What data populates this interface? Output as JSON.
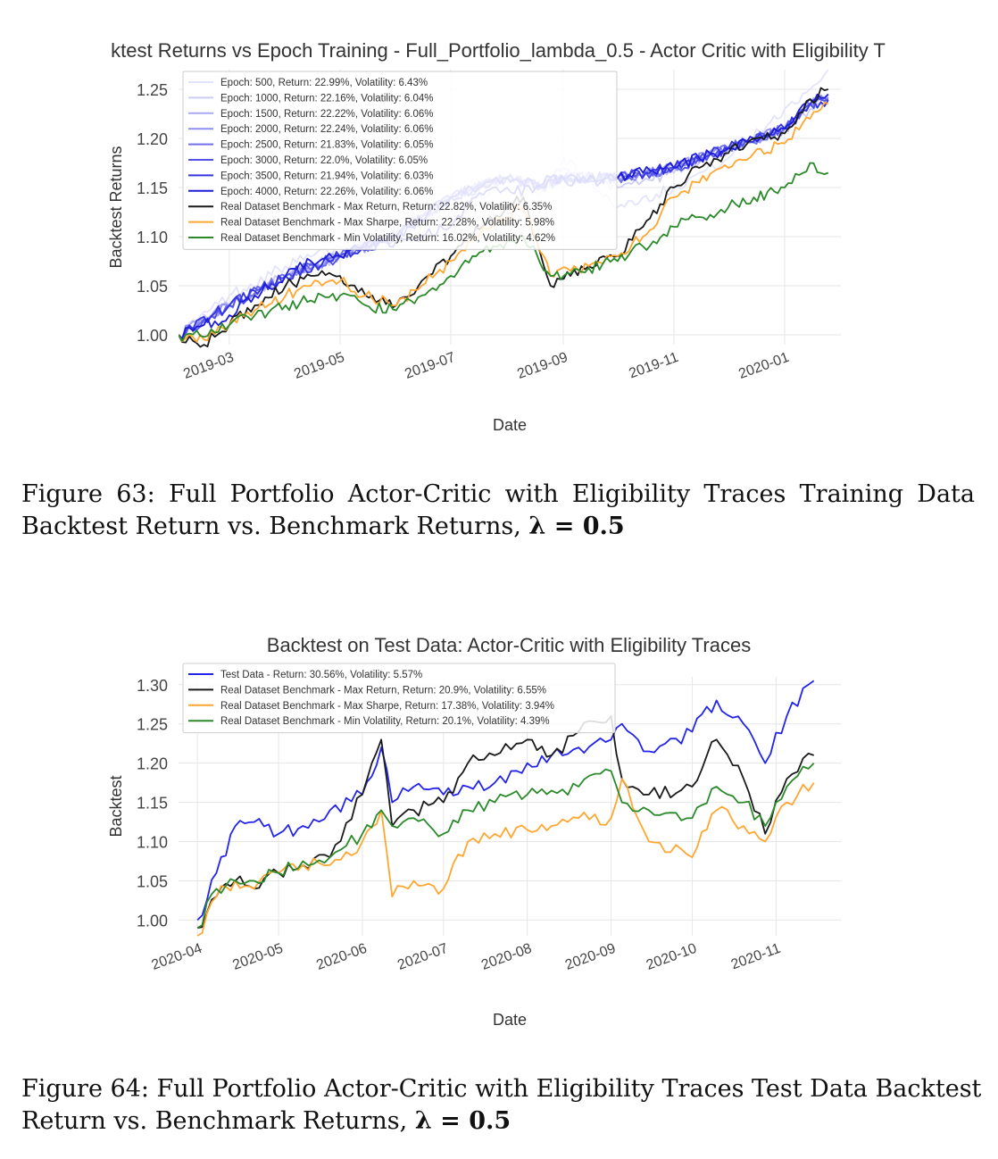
{
  "figures": [
    {
      "caption": {
        "line1": "Figure 63:  Full Portfolio Actor-Critic with Eligibility Traces Training Data",
        "line2_pre": "Backtest Return vs. Benchmark Returns, ",
        "line2_math": "λ = 0.5"
      }
    },
    {
      "caption": {
        "line1": "Figure 64: Full Portfolio Actor-Critic with Eligibility Traces Test Data Backtest",
        "line2_pre": "Return vs. Benchmark Returns, ",
        "line2_math": "λ = 0.5"
      }
    }
  ],
  "chart_data": [
    {
      "type": "line",
      "title": "ktest Returns vs Epoch Training - Full_Portfolio_lambda_0.5 - Actor Critic with Eligibility T",
      "xlabel": "Date",
      "ylabel": "Backtest Returns",
      "x_type": "date",
      "xlim": [
        "2019-02-01",
        "2020-02-01"
      ],
      "ylim": [
        0.99,
        1.27
      ],
      "yticks": [
        1.0,
        1.05,
        1.1,
        1.15,
        1.2,
        1.25
      ],
      "ytick_labels": [
        "1.00",
        "1.05",
        "1.10",
        "1.15",
        "1.20",
        "1.25"
      ],
      "xticks": [
        "2019-03-01",
        "2019-05-01",
        "2019-07-01",
        "2019-09-01",
        "2019-11-01",
        "2020-01-01"
      ],
      "xtick_labels": [
        "2019-03",
        "2019-05",
        "2019-07",
        "2019-09",
        "2019-11",
        "2020-01"
      ],
      "grid": true,
      "legend_position": "top-left",
      "series": [
        {
          "name": "Epoch: 500, Return: 22.99%, Volatility: 6.43%",
          "color": "#e3e3fb",
          "x": [
            "2019-02-01",
            "2019-03-01",
            "2019-04-01",
            "2019-05-01",
            "2019-06-01",
            "2019-07-01",
            "2019-08-01",
            "2019-08-20",
            "2019-09-01",
            "2019-10-01",
            "2019-11-01",
            "2019-12-01",
            "2020-01-01",
            "2020-01-15",
            "2020-01-25"
          ],
          "y": [
            1.0,
            1.04,
            1.07,
            1.09,
            1.11,
            1.12,
            1.16,
            1.145,
            1.18,
            1.13,
            1.15,
            1.18,
            1.23,
            1.25,
            1.27
          ]
        },
        {
          "name": "Epoch: 1000, Return: 22.16%, Volatility: 6.04%",
          "color": "#ccccf7",
          "x": [
            "2019-02-01",
            "2019-03-01",
            "2019-04-01",
            "2019-05-01",
            "2019-06-01",
            "2019-07-01",
            "2019-08-01",
            "2019-08-20",
            "2019-09-01",
            "2019-10-01",
            "2019-11-01",
            "2019-12-01",
            "2020-01-01",
            "2020-01-15",
            "2020-01-25"
          ],
          "y": [
            1.0,
            1.03,
            1.06,
            1.08,
            1.105,
            1.14,
            1.16,
            1.15,
            1.17,
            1.15,
            1.165,
            1.19,
            1.21,
            1.23,
            1.245
          ]
        },
        {
          "name": "Epoch: 1500, Return: 22.22%, Volatility: 6.06%",
          "color": "#a9a9f2",
          "x": [
            "2019-02-01",
            "2019-03-01",
            "2019-04-01",
            "2019-05-01",
            "2019-06-01",
            "2019-07-01",
            "2019-08-01",
            "2019-08-20",
            "2019-09-01",
            "2019-10-01",
            "2019-11-01",
            "2019-12-01",
            "2020-01-01",
            "2020-01-15",
            "2020-01-25"
          ],
          "y": [
            1.0,
            1.03,
            1.06,
            1.08,
            1.1,
            1.14,
            1.16,
            1.15,
            1.16,
            1.16,
            1.17,
            1.19,
            1.21,
            1.235,
            1.24
          ]
        },
        {
          "name": "Epoch: 2000, Return: 22.24%, Volatility: 6.06%",
          "color": "#8f8fef",
          "x": [
            "2019-02-01",
            "2019-03-01",
            "2019-04-01",
            "2019-05-01",
            "2019-06-01",
            "2019-07-01",
            "2019-08-01",
            "2019-08-20",
            "2019-09-01",
            "2019-10-01",
            "2019-11-01",
            "2019-12-01",
            "2020-01-01",
            "2020-01-15",
            "2020-01-25"
          ],
          "y": [
            1.0,
            1.03,
            1.06,
            1.08,
            1.1,
            1.14,
            1.16,
            1.15,
            1.16,
            1.16,
            1.17,
            1.19,
            1.21,
            1.235,
            1.242
          ]
        },
        {
          "name": "Epoch: 2500, Return: 21.83%, Volatility: 6.05%",
          "color": "#6f6feb",
          "x": [
            "2019-02-01",
            "2019-03-01",
            "2019-04-01",
            "2019-05-01",
            "2019-06-01",
            "2019-07-01",
            "2019-08-01",
            "2019-08-20",
            "2019-09-01",
            "2019-10-01",
            "2019-11-01",
            "2019-12-01",
            "2020-01-01",
            "2020-01-15",
            "2020-01-25"
          ],
          "y": [
            1.0,
            1.03,
            1.06,
            1.08,
            1.1,
            1.14,
            1.16,
            1.15,
            1.16,
            1.16,
            1.17,
            1.19,
            1.21,
            1.235,
            1.238
          ]
        },
        {
          "name": "Epoch: 3000, Return: 22.0%, Volatility: 6.05%",
          "color": "#5252e6",
          "x": [
            "2019-02-01",
            "2019-03-01",
            "2019-04-01",
            "2019-05-01",
            "2019-06-01",
            "2019-07-01",
            "2019-08-01",
            "2019-08-20",
            "2019-09-01",
            "2019-10-01",
            "2019-11-01",
            "2019-12-01",
            "2020-01-01",
            "2020-01-15",
            "2020-01-25"
          ],
          "y": [
            1.0,
            1.03,
            1.06,
            1.08,
            1.1,
            1.14,
            1.16,
            1.15,
            1.16,
            1.16,
            1.17,
            1.19,
            1.21,
            1.235,
            1.24
          ]
        },
        {
          "name": "Epoch: 3500, Return: 21.94%, Volatility: 6.03%",
          "color": "#3434e0",
          "x": [
            "2019-02-01",
            "2019-03-01",
            "2019-04-01",
            "2019-05-01",
            "2019-06-01",
            "2019-07-01",
            "2019-08-01",
            "2019-08-20",
            "2019-09-01",
            "2019-10-01",
            "2019-11-01",
            "2019-12-01",
            "2020-01-01",
            "2020-01-15",
            "2020-01-25"
          ],
          "y": [
            1.0,
            1.03,
            1.06,
            1.08,
            1.1,
            1.14,
            1.16,
            1.15,
            1.16,
            1.16,
            1.17,
            1.19,
            1.21,
            1.235,
            1.239
          ]
        },
        {
          "name": "Epoch: 4000, Return: 22.26%, Volatility: 6.06%",
          "color": "#1c1cd9",
          "x": [
            "2019-02-01",
            "2019-02-15",
            "2019-03-01",
            "2019-03-15",
            "2019-04-01",
            "2019-04-15",
            "2019-05-01",
            "2019-05-15",
            "2019-06-01",
            "2019-06-15",
            "2019-07-01",
            "2019-07-15",
            "2019-08-01",
            "2019-08-15",
            "2019-08-25",
            "2019-09-10",
            "2019-10-01",
            "2019-10-15",
            "2019-11-01",
            "2019-11-15",
            "2019-12-01",
            "2019-12-15",
            "2020-01-01",
            "2020-01-15",
            "2020-01-25"
          ],
          "y": [
            1.0,
            1.01,
            1.02,
            1.04,
            1.06,
            1.075,
            1.08,
            1.09,
            1.095,
            1.1,
            1.11,
            1.14,
            1.15,
            1.145,
            1.16,
            1.155,
            1.16,
            1.165,
            1.17,
            1.18,
            1.19,
            1.2,
            1.21,
            1.24,
            1.245
          ]
        },
        {
          "name": "Real Dataset Benchmark - Max Return, Return: 22.82%, Volatility: 6.35%",
          "color": "#1a1a1a",
          "x": [
            "2019-02-01",
            "2019-02-15",
            "2019-03-01",
            "2019-03-15",
            "2019-04-01",
            "2019-04-15",
            "2019-05-01",
            "2019-05-15",
            "2019-06-01",
            "2019-06-15",
            "2019-07-01",
            "2019-07-15",
            "2019-08-01",
            "2019-08-10",
            "2019-08-25",
            "2019-09-05",
            "2019-09-15",
            "2019-10-01",
            "2019-10-15",
            "2019-11-01",
            "2019-11-15",
            "2019-12-01",
            "2019-12-15",
            "2020-01-01",
            "2020-01-15",
            "2020-01-25"
          ],
          "y": [
            1.0,
            0.99,
            1.01,
            1.03,
            1.05,
            1.06,
            1.06,
            1.04,
            1.03,
            1.055,
            1.08,
            1.11,
            1.13,
            1.14,
            1.05,
            1.06,
            1.07,
            1.08,
            1.11,
            1.15,
            1.17,
            1.185,
            1.2,
            1.205,
            1.24,
            1.25
          ]
        },
        {
          "name": "Real Dataset Benchmark - Max Sharpe, Return: 22.28%, Volatility: 5.98%",
          "color": "#ffa630",
          "x": [
            "2019-02-01",
            "2019-02-15",
            "2019-03-01",
            "2019-03-15",
            "2019-04-01",
            "2019-04-15",
            "2019-05-01",
            "2019-05-15",
            "2019-06-01",
            "2019-06-15",
            "2019-07-01",
            "2019-07-15",
            "2019-08-01",
            "2019-08-10",
            "2019-08-25",
            "2019-09-05",
            "2019-09-15",
            "2019-10-01",
            "2019-10-15",
            "2019-11-01",
            "2019-11-15",
            "2019-12-01",
            "2019-12-15",
            "2020-01-01",
            "2020-01-15",
            "2020-01-25"
          ],
          "y": [
            1.0,
            0.995,
            1.01,
            1.025,
            1.04,
            1.05,
            1.055,
            1.04,
            1.03,
            1.05,
            1.075,
            1.1,
            1.12,
            1.13,
            1.06,
            1.065,
            1.07,
            1.08,
            1.1,
            1.14,
            1.155,
            1.17,
            1.185,
            1.195,
            1.22,
            1.235
          ]
        },
        {
          "name": "Real Dataset Benchmark - Min Volatility, Return: 16.02%, Volatility: 4.62%",
          "color": "#2a8a2a",
          "x": [
            "2019-02-01",
            "2019-02-15",
            "2019-03-01",
            "2019-03-15",
            "2019-04-01",
            "2019-04-15",
            "2019-05-01",
            "2019-05-15",
            "2019-06-01",
            "2019-06-15",
            "2019-07-01",
            "2019-07-15",
            "2019-08-01",
            "2019-08-10",
            "2019-08-25",
            "2019-09-05",
            "2019-09-15",
            "2019-10-01",
            "2019-10-15",
            "2019-11-01",
            "2019-11-15",
            "2019-12-01",
            "2019-12-15",
            "2020-01-01",
            "2020-01-15",
            "2020-01-25"
          ],
          "y": [
            1.0,
            0.998,
            1.01,
            1.02,
            1.03,
            1.035,
            1.04,
            1.03,
            1.025,
            1.04,
            1.06,
            1.08,
            1.095,
            1.1,
            1.06,
            1.062,
            1.068,
            1.075,
            1.09,
            1.11,
            1.12,
            1.13,
            1.14,
            1.15,
            1.175,
            1.165
          ]
        }
      ]
    },
    {
      "type": "line",
      "title": "Backtest on Test Data: Actor-Critic with Eligibility Traces",
      "xlabel": "Date",
      "ylabel": "Backtest",
      "x_type": "date",
      "xlim": [
        "2020-03-25",
        "2020-11-25"
      ],
      "ylim": [
        0.98,
        1.31
      ],
      "yticks": [
        1.0,
        1.05,
        1.1,
        1.15,
        1.2,
        1.25,
        1.3
      ],
      "ytick_labels": [
        "1.00",
        "1.05",
        "1.10",
        "1.15",
        "1.20",
        "1.25",
        "1.30"
      ],
      "xticks": [
        "2020-04-01",
        "2020-05-01",
        "2020-06-01",
        "2020-07-01",
        "2020-08-01",
        "2020-09-01",
        "2020-10-01",
        "2020-11-01"
      ],
      "xtick_labels": [
        "2020-04",
        "2020-05",
        "2020-06",
        "2020-07",
        "2020-08",
        "2020-09",
        "2020-10",
        "2020-11"
      ],
      "grid": true,
      "legend_position": "top-left",
      "series": [
        {
          "name": "Test Data - Return: 30.56%, Volatility: 5.57%",
          "color": "#2323ee",
          "x": [
            "2020-04-01",
            "2020-04-08",
            "2020-04-15",
            "2020-04-22",
            "2020-05-01",
            "2020-05-10",
            "2020-05-20",
            "2020-06-01",
            "2020-06-08",
            "2020-06-12",
            "2020-06-20",
            "2020-07-01",
            "2020-07-10",
            "2020-07-20",
            "2020-08-01",
            "2020-08-10",
            "2020-08-20",
            "2020-09-01",
            "2020-09-05",
            "2020-09-15",
            "2020-10-01",
            "2020-10-10",
            "2020-10-20",
            "2020-10-28",
            "2020-11-05",
            "2020-11-15"
          ],
          "y": [
            1.0,
            1.06,
            1.12,
            1.125,
            1.11,
            1.12,
            1.14,
            1.16,
            1.22,
            1.15,
            1.17,
            1.16,
            1.17,
            1.175,
            1.2,
            1.21,
            1.22,
            1.23,
            1.25,
            1.215,
            1.24,
            1.28,
            1.25,
            1.2,
            1.26,
            1.305
          ]
        },
        {
          "name": "Real Dataset Benchmark - Max Return, Return: 20.9%, Volatility: 6.55%",
          "color": "#1a1a1a",
          "x": [
            "2020-04-01",
            "2020-04-08",
            "2020-04-15",
            "2020-04-22",
            "2020-05-01",
            "2020-05-10",
            "2020-05-20",
            "2020-06-01",
            "2020-06-08",
            "2020-06-12",
            "2020-06-20",
            "2020-07-01",
            "2020-07-10",
            "2020-07-20",
            "2020-08-01",
            "2020-08-10",
            "2020-08-20",
            "2020-09-01",
            "2020-09-05",
            "2020-09-15",
            "2020-10-01",
            "2020-10-10",
            "2020-10-20",
            "2020-10-28",
            "2020-11-05",
            "2020-11-15"
          ],
          "y": [
            0.99,
            1.03,
            1.05,
            1.04,
            1.06,
            1.07,
            1.08,
            1.16,
            1.23,
            1.12,
            1.14,
            1.15,
            1.2,
            1.21,
            1.23,
            1.21,
            1.24,
            1.26,
            1.18,
            1.16,
            1.17,
            1.23,
            1.18,
            1.11,
            1.18,
            1.21
          ]
        },
        {
          "name": "Real Dataset Benchmark - Max Sharpe, Return: 17.38%, Volatility: 3.94%",
          "color": "#ffa630",
          "x": [
            "2020-04-01",
            "2020-04-08",
            "2020-04-15",
            "2020-04-22",
            "2020-05-01",
            "2020-05-10",
            "2020-05-20",
            "2020-06-01",
            "2020-06-08",
            "2020-06-12",
            "2020-06-20",
            "2020-07-01",
            "2020-07-10",
            "2020-07-20",
            "2020-08-01",
            "2020-08-10",
            "2020-08-20",
            "2020-09-01",
            "2020-09-05",
            "2020-09-15",
            "2020-10-01",
            "2020-10-10",
            "2020-10-20",
            "2020-10-28",
            "2020-11-05",
            "2020-11-15"
          ],
          "y": [
            0.98,
            1.03,
            1.05,
            1.04,
            1.06,
            1.07,
            1.07,
            1.1,
            1.14,
            1.03,
            1.05,
            1.04,
            1.1,
            1.11,
            1.115,
            1.12,
            1.13,
            1.13,
            1.18,
            1.1,
            1.08,
            1.14,
            1.12,
            1.1,
            1.15,
            1.175
          ]
        },
        {
          "name": "Real Dataset Benchmark - Min Volatility, Return: 20.1%, Volatility: 4.39%",
          "color": "#2a8a2a",
          "x": [
            "2020-04-01",
            "2020-04-08",
            "2020-04-15",
            "2020-04-22",
            "2020-05-01",
            "2020-05-10",
            "2020-05-20",
            "2020-06-01",
            "2020-06-08",
            "2020-06-12",
            "2020-06-20",
            "2020-07-01",
            "2020-07-10",
            "2020-07-20",
            "2020-08-01",
            "2020-08-10",
            "2020-08-20",
            "2020-09-01",
            "2020-09-05",
            "2020-09-15",
            "2020-10-01",
            "2020-10-10",
            "2020-10-20",
            "2020-10-28",
            "2020-11-05",
            "2020-11-15"
          ],
          "y": [
            0.99,
            1.04,
            1.05,
            1.05,
            1.06,
            1.075,
            1.08,
            1.11,
            1.14,
            1.12,
            1.13,
            1.11,
            1.14,
            1.15,
            1.16,
            1.165,
            1.17,
            1.19,
            1.15,
            1.14,
            1.13,
            1.17,
            1.15,
            1.12,
            1.17,
            1.2
          ]
        }
      ]
    }
  ]
}
